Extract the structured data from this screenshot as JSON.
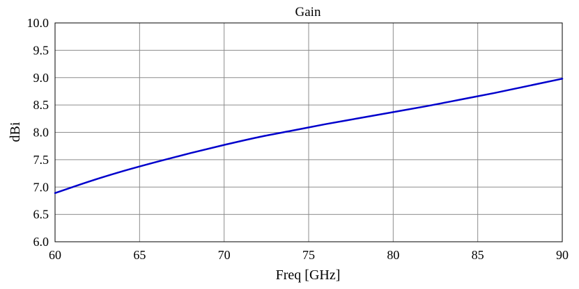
{
  "chart_data": {
    "type": "line",
    "title": "Gain",
    "xlabel": "Freq [GHz]",
    "ylabel": "dBi",
    "xlim": [
      60,
      90
    ],
    "ylim": [
      6.0,
      10.0
    ],
    "xticks": [
      60,
      65,
      70,
      75,
      80,
      85,
      90
    ],
    "xtick_labels": [
      "60",
      "65",
      "70",
      "75",
      "80",
      "85",
      "90"
    ],
    "yticks": [
      6.0,
      6.5,
      7.0,
      7.5,
      8.0,
      8.5,
      9.0,
      9.5,
      10.0
    ],
    "ytick_labels": [
      "6.0",
      "6.5",
      "7.0",
      "7.5",
      "8.0",
      "8.5",
      "9.0",
      "9.5",
      "10.0"
    ],
    "grid": true,
    "series": [
      {
        "color": "#0000cc",
        "x": [
          60,
          62,
          64,
          66,
          68,
          70,
          72,
          74,
          76,
          78,
          80,
          82,
          84,
          86,
          88,
          90
        ],
        "y": [
          6.89,
          7.1,
          7.29,
          7.46,
          7.62,
          7.77,
          7.91,
          8.03,
          8.15,
          8.26,
          8.37,
          8.48,
          8.6,
          8.72,
          8.85,
          8.98
        ]
      }
    ]
  }
}
